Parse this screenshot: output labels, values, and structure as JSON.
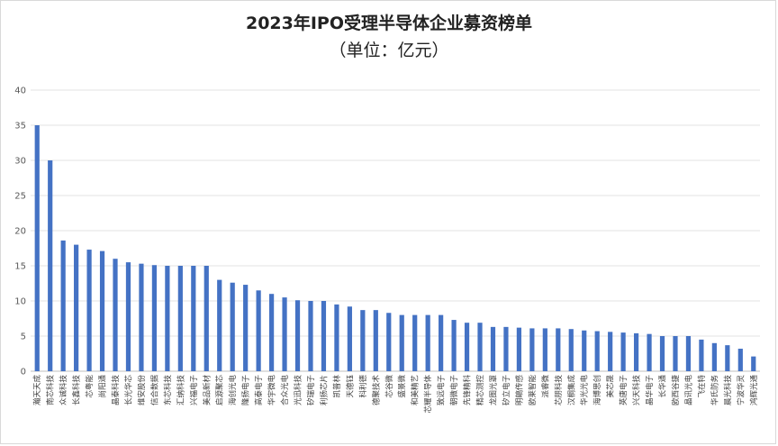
{
  "chart_data": {
    "type": "bar",
    "title": "2023年IPO受理半导体企业募资榜单",
    "subtitle": "（单位：亿元）",
    "xlabel": "",
    "ylabel": "",
    "ylim": [
      0,
      40
    ],
    "yticks": [
      0,
      5,
      10,
      15,
      20,
      25,
      30,
      35,
      40
    ],
    "grid": true,
    "legend": "none",
    "bar_color": "#4472c4",
    "categories": [
      "瀚天天成",
      "南芯科技",
      "众诚科技",
      "长鑫科技",
      "芯粤能",
      "尚阳通",
      "晶泰科技",
      "长光华芯",
      "维安股份",
      "信合数据",
      "东芯科技",
      "汇纳科技",
      "兴福电子",
      "美品新材",
      "启源聚芯",
      "海创光电",
      "隆扬电子",
      "高泰电子",
      "华宇微电",
      "合众光电",
      "光迅科技",
      "矽瑞电子",
      "利扬芯片",
      "凯普林",
      "天德钰",
      "科利德",
      "德聚技术",
      "芯谷微",
      "盛景微",
      "和美精艺",
      "芯耀半导体",
      "致远电子",
      "朝微电子",
      "先锋精科",
      "精芯测控",
      "龙图光罩",
      "矽立电子",
      "明皜传感",
      "欧莱智能",
      "派睿微",
      "芯朋科技",
      "汉桐集成",
      "华光光电",
      "海博思创",
      "美芯晟",
      "英唐电子",
      "兴天科技",
      "晶华电子",
      "长华通",
      "欧西谷捷",
      "晶讯光电",
      "飞在特",
      "华氏防务",
      "晨光科技",
      "宁波华灵",
      "鸿辉光通"
    ],
    "values": [
      35.0,
      30.0,
      18.6,
      18.0,
      17.3,
      17.1,
      16.0,
      15.5,
      15.3,
      15.1,
      15.0,
      15.0,
      15.0,
      15.0,
      13.0,
      12.6,
      12.3,
      11.5,
      11.0,
      10.5,
      10.1,
      10.0,
      10.0,
      9.5,
      9.2,
      8.7,
      8.7,
      8.3,
      8.0,
      8.0,
      8.0,
      8.0,
      7.3,
      6.9,
      6.9,
      6.3,
      6.3,
      6.2,
      6.1,
      6.1,
      6.1,
      6.0,
      5.8,
      5.7,
      5.6,
      5.5,
      5.4,
      5.3,
      5.0,
      5.0,
      5.0,
      4.5,
      4.0,
      3.7,
      3.2,
      2.1
    ]
  }
}
